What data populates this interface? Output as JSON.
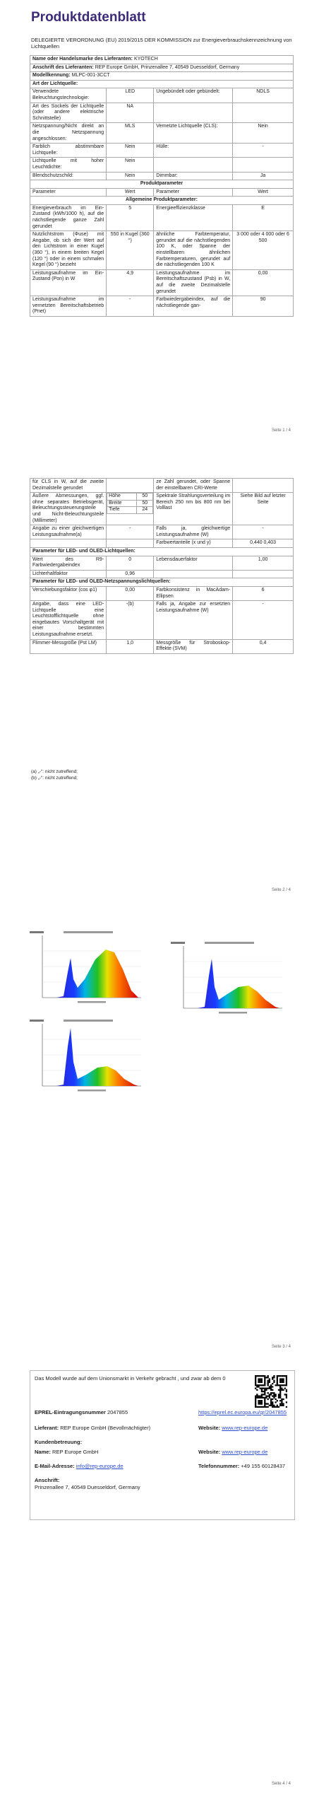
{
  "page1": {
    "title": "Produktdatenblatt",
    "regulation": "DELEGIERTE VERORDNUNG (EU) 2019/2015 DER KOMMISSION zur Energieverbrauchskennzeichnung von Lichtquellen",
    "rows": [
      {
        "label": "Name oder Handelsmarke des Lieferanten:",
        "value": "KYOTECH"
      },
      {
        "label": "Anschrift des Lieferanten:",
        "value": "REP Europe GmbH, Prinzenallee 7, 40549 Duesseldorf, Germany"
      },
      {
        "label": "Modellkennung:",
        "value": "MLPC-001-3CCT"
      },
      {
        "section": "Art der Lichtquelle:"
      },
      {
        "cells": [
          "Verwendete Beleuchtungstechnologie:",
          "LED",
          "Ungebündelt oder gebündelt:",
          "NDLS"
        ]
      },
      {
        "cells": [
          "Art des Sockels der Lichtquelle (oder andere elektrische Schnittstelle)",
          "NA",
          null,
          null
        ]
      },
      {
        "cells": [
          "Netzspannung/Nicht direkt an die Netzspannung angeschlossen:",
          "MLS",
          "Vernetzte Lichtquelle (CLS):",
          "Nein"
        ]
      },
      {
        "cells": [
          "Farblich abstimmbare Lichtquelle:",
          "Nein",
          "Hülle:",
          "-"
        ]
      },
      {
        "cells": [
          "Lichtquelle mit hoher Leuchtdichte:",
          "Nein",
          null,
          null
        ]
      },
      {
        "cells": [
          "Blendschutzschild:",
          "Nein",
          "Dimmbar:",
          "Ja"
        ]
      },
      {
        "heading": "Produktparameter"
      },
      {
        "cells": [
          "Parameter",
          "Wert",
          "Parameter",
          "Wert"
        ]
      },
      {
        "heading": "Allgemeine Produktparameter:"
      },
      {
        "cells": [
          "Energieverbrauch im Ein-Zustand (kWh/1000 h), auf die nächstliegende ganze Zahl gerundet",
          "5",
          "Energieeffizienzklasse",
          "E"
        ]
      },
      {
        "cells": [
          "Nutzlichtstrom (Φuse) mit Angabe, ob sich der Wert auf den Lichtstrom in einer Kugel (360 °), in einem breiten Kegel (120 °) oder in einem schmalen Kegel (90 °) bezieht",
          "550 in Kugel (360 °)",
          "ähnliche Farbtemperatur, gerundet auf die nächstliegenden 100 K, oder Spanne der einstellbaren ähnlichen Farbtemperaturen, gerundet auf die nächstliegenden 100 K",
          "3 000 oder 4 000 oder 6 500"
        ]
      },
      {
        "cells": [
          "Leistungsaufnahme im Ein-Zustand (Pon) in W",
          "4,9",
          "Leistungsaufnahme im Bereitschaftszustand (Psb) in W, auf die zweite Dezimalstelle gerundet",
          "0,00"
        ]
      },
      {
        "cells": [
          "Leistungsaufnahme im vernetzten Bereitschaftsbetrieb (Pnet)",
          "-",
          "Farbwiedergabeindex, auf die nächstliegende gan-",
          "90"
        ]
      }
    ],
    "footer": "Seite 1 / 4"
  },
  "page2": {
    "rows": [
      {
        "cells": [
          "für CLS in W, auf die zweite Dezimalstelle gerundet",
          null,
          "ze Zahl gerundet, oder Spanne der einstellbaren CRI-Werte",
          null
        ]
      },
      {
        "cells": [
          "Äußere Abmessungen, ggf. ohne separates Betriebsgerät, Beleuchtungssteuerungsteile und Nicht-Beleuchtungsteile (Millimeter)",
          [
            [
              "Höhe",
              "50"
            ],
            [
              "Breite",
              "50"
            ],
            [
              "Tiefe",
              "24"
            ]
          ],
          "Spektrale Strahlungsverteilung im Bereich 250 nm bis 800 nm bei Volllast",
          "Siehe Bild auf letzter Seite"
        ]
      },
      {
        "cells": [
          "Angabe zu einer gleichwertigen Leistungsaufnahme(a)",
          "-",
          "Falls ja, gleichwertige Leistungsaufnahme (W)",
          "-"
        ]
      },
      {
        "cells": [
          null,
          null,
          "Farbwertanteile (x und y)",
          "0,440 0,403"
        ]
      },
      {
        "section": "Parameter für LED- und OLED-Lichtquellen:"
      },
      {
        "cells": [
          "Wert des R9-Farbwiedergabeindex",
          "0",
          "Lebensdauerfaktor",
          "1,00"
        ]
      },
      {
        "cells": [
          "Lichterhaltfaktor",
          "0,96",
          null,
          null
        ]
      },
      {
        "section": "Parameter für LED- und OLED-Netzspannungslichtquellen:"
      },
      {
        "cells": [
          "Verschiebungsfaktor (cos φ1)",
          "0,00",
          "Farbkonsistenz in MacAdam-Ellipsen",
          "6"
        ]
      },
      {
        "cells": [
          "Angabe, dass eine LED-Lichtquelle eine Leuchtstofflichtquelle ohne eingebautes Vorschaltgerät mit einer bestimmten Leistungsaufnahme ersetzt.",
          "-(b)",
          "Falls ja, Angabe zur ersetzten Leistungsaufnahme (W)",
          "-"
        ]
      },
      {
        "cells": [
          "Flimmer-Messgröße (Pst LM)",
          "1,0",
          "Messgröße für Stroboskop-Effekte (SVM)",
          "0,4"
        ]
      }
    ],
    "footnotes": [
      "(a) „-“: nicht zutreffend;",
      "(b) „-“: nicht zutreffend;"
    ],
    "footer": "Seite 2 / 4"
  },
  "page3": {
    "footer": "Seite 3 / 4"
  },
  "page4": {
    "intro": "Das Modell wurde auf dem Unionsmarkt in Verkehr gebracht , und zwar ab dem 0",
    "rows": [
      [
        {
          "label": "EPREL-Eintragungsnummer",
          "value": "2047855"
        },
        {
          "link": "https://eprel.ec.europa.eu/qr/2047855"
        }
      ],
      [
        {
          "label": "Lieferant:",
          "value": "REP Europe GmbH (Bevollmächtigter)"
        },
        {
          "label": "Website:",
          "link": "www.rep-europe.de"
        }
      ],
      [
        {
          "label": "Kundenbetreuung:"
        }
      ],
      [
        {
          "label": "Name:",
          "value": "REP Europe GmbH"
        },
        {
          "label": "Website:",
          "link": "www.rep-europe.de"
        }
      ],
      [
        {
          "label": "E-Mail-Adresse:",
          "link": "info@rep-europe.de"
        },
        {
          "label": "Telefonnummer:",
          "value": "+49 155 60128437"
        }
      ],
      [
        {
          "label": "Anschrift:",
          "value": "Prinzenallee 7, 40549 Duesseldorf, Germany"
        }
      ]
    ],
    "footer": "Seite 4 / 4"
  }
}
